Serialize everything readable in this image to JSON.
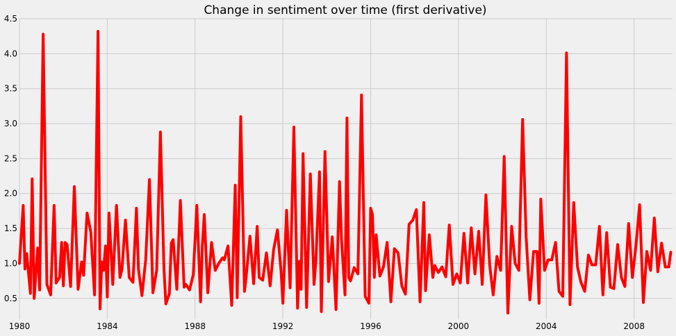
{
  "chart_data": {
    "type": "line",
    "title": "Change in sentiment over time (first derivative)",
    "xlabel": "",
    "ylabel": "",
    "xlim": [
      1980.0,
      2009.75
    ],
    "ylim": [
      0.2,
      4.5
    ],
    "grid": true,
    "legend": "none",
    "x_ticks": [
      1980,
      1984,
      1988,
      1992,
      1996,
      2000,
      2004,
      2008
    ],
    "x_tick_labels": [
      "1980",
      "1984",
      "1988",
      "1992",
      "1996",
      "2000",
      "2004",
      "2008"
    ],
    "y_ticks": [
      0.5,
      1.0,
      1.5,
      2.0,
      2.5,
      3.0,
      3.5,
      4.0,
      4.5
    ],
    "y_tick_labels": [
      "0.5",
      "1.0",
      "1.5",
      "2.0",
      "2.5",
      "3.0",
      "3.5",
      "4.0",
      "4.5"
    ],
    "series": [
      {
        "color": "#ff0000",
        "x": [
          1980.0,
          1980.17,
          1980.25,
          1980.33,
          1980.5,
          1980.58,
          1980.67,
          1980.83,
          1980.92,
          1981.08,
          1981.25,
          1981.42,
          1981.58,
          1981.67,
          1981.83,
          1981.92,
          1982.0,
          1982.08,
          1982.17,
          1982.33,
          1982.5,
          1982.67,
          1982.83,
          1982.92,
          1983.08,
          1983.25,
          1983.42,
          1983.58,
          1983.67,
          1983.75,
          1983.83,
          1983.92,
          1984.0,
          1984.08,
          1984.25,
          1984.42,
          1984.58,
          1984.67,
          1984.83,
          1985.0,
          1985.17,
          1985.33,
          1985.42,
          1985.58,
          1985.75,
          1985.92,
          1986.08,
          1986.25,
          1986.42,
          1986.58,
          1986.67,
          1986.83,
          1986.92,
          1987.0,
          1987.17,
          1987.33,
          1987.5,
          1987.58,
          1987.75,
          1987.92,
          1988.08,
          1988.25,
          1988.33,
          1988.42,
          1988.58,
          1988.75,
          1988.92,
          1989.08,
          1989.25,
          1989.33,
          1989.5,
          1989.67,
          1989.83,
          1989.92,
          1990.08,
          1990.25,
          1990.33,
          1990.5,
          1990.67,
          1990.83,
          1990.92,
          1991.08,
          1991.25,
          1991.42,
          1991.58,
          1991.75,
          1991.92,
          1992.0,
          1992.17,
          1992.33,
          1992.5,
          1992.67,
          1992.75,
          1992.83,
          1992.92,
          1993.08,
          1993.25,
          1993.42,
          1993.5,
          1993.67,
          1993.75,
          1993.92,
          1994.08,
          1994.25,
          1994.42,
          1994.58,
          1994.67,
          1994.83,
          1994.92,
          1995.0,
          1995.08,
          1995.25,
          1995.42,
          1995.58,
          1995.75,
          1995.92,
          1996.0,
          1996.08,
          1996.17,
          1996.25,
          1996.42,
          1996.58,
          1996.75,
          1996.92,
          1997.08,
          1997.25,
          1997.42,
          1997.58,
          1997.75,
          1997.92,
          1998.08,
          1998.25,
          1998.42,
          1998.5,
          1998.67,
          1998.83,
          1998.92,
          1999.08,
          1999.25,
          1999.42,
          1999.58,
          1999.75,
          1999.92,
          2000.08,
          2000.25,
          2000.42,
          2000.58,
          2000.75,
          2000.92,
          2001.08,
          2001.25,
          2001.42,
          2001.58,
          2001.75,
          2001.92,
          2002.08,
          2002.25,
          2002.42,
          2002.58,
          2002.75,
          2002.92,
          2003.08,
          2003.25,
          2003.42,
          2003.58,
          2003.67,
          2003.75,
          2003.92,
          2004.08,
          2004.25,
          2004.42,
          2004.58,
          2004.75,
          2004.92,
          2005.08,
          2005.25,
          2005.42,
          2005.58,
          2005.75,
          2005.92,
          2006.08,
          2006.25,
          2006.42,
          2006.58,
          2006.75,
          2006.92,
          2007.08,
          2007.25,
          2007.42,
          2007.58,
          2007.75,
          2007.92,
          2008.08,
          2008.25,
          2008.42,
          2008.58,
          2008.75,
          2008.92,
          2009.08,
          2009.25,
          2009.42,
          2009.58,
          2009.67
        ],
        "y": [
          1.0,
          1.83,
          0.92,
          1.14,
          0.57,
          2.21,
          0.5,
          1.22,
          0.62,
          4.28,
          0.7,
          0.55,
          1.83,
          0.72,
          0.8,
          1.3,
          0.68,
          1.3,
          1.27,
          0.67,
          2.1,
          0.63,
          1.02,
          0.83,
          1.72,
          1.45,
          0.55,
          4.32,
          0.35,
          1.02,
          0.9,
          1.25,
          0.52,
          1.72,
          0.7,
          1.83,
          0.8,
          0.92,
          1.62,
          0.8,
          0.73,
          1.79,
          0.92,
          0.54,
          1.05,
          2.2,
          0.58,
          0.9,
          2.88,
          0.95,
          0.42,
          0.57,
          1.29,
          1.34,
          0.63,
          1.9,
          0.66,
          0.7,
          0.62,
          0.84,
          1.83,
          0.45,
          1.25,
          1.7,
          0.58,
          1.3,
          0.9,
          1.0,
          1.08,
          1.05,
          1.25,
          0.4,
          2.12,
          0.51,
          3.1,
          0.6,
          0.82,
          1.39,
          0.71,
          1.53,
          0.8,
          0.76,
          1.15,
          0.68,
          1.2,
          1.48,
          0.88,
          0.43,
          1.76,
          0.65,
          2.95,
          0.36,
          1.03,
          0.63,
          2.57,
          0.37,
          2.28,
          0.7,
          1.02,
          2.31,
          0.31,
          2.6,
          0.74,
          1.38,
          0.34,
          2.17,
          1.35,
          0.55,
          3.08,
          0.8,
          0.75,
          0.94,
          0.85,
          3.41,
          0.53,
          0.43,
          1.79,
          1.7,
          0.8,
          1.41,
          0.82,
          0.95,
          1.3,
          0.45,
          1.21,
          1.15,
          0.68,
          0.56,
          1.56,
          1.62,
          1.77,
          0.45,
          1.87,
          0.61,
          1.41,
          0.8,
          0.97,
          0.87,
          0.95,
          0.81,
          1.55,
          0.7,
          0.85,
          0.72,
          1.43,
          0.72,
          1.51,
          0.85,
          1.46,
          0.7,
          1.98,
          0.98,
          0.55,
          1.1,
          0.9,
          2.53,
          0.29,
          1.53,
          1.0,
          0.9,
          3.06,
          1.38,
          0.48,
          1.17,
          1.17,
          0.43,
          1.92,
          0.9,
          1.05,
          1.05,
          1.3,
          0.6,
          0.53,
          4.01,
          0.41,
          1.87,
          0.95,
          0.73,
          0.6,
          1.12,
          0.98,
          0.98,
          1.53,
          0.55,
          1.44,
          0.66,
          0.64,
          1.27,
          0.8,
          0.67,
          1.57,
          0.8,
          1.24,
          1.84,
          0.44,
          1.17,
          0.9,
          1.65,
          0.88,
          1.29,
          0.95,
          0.95,
          1.16
        ]
      }
    ]
  }
}
